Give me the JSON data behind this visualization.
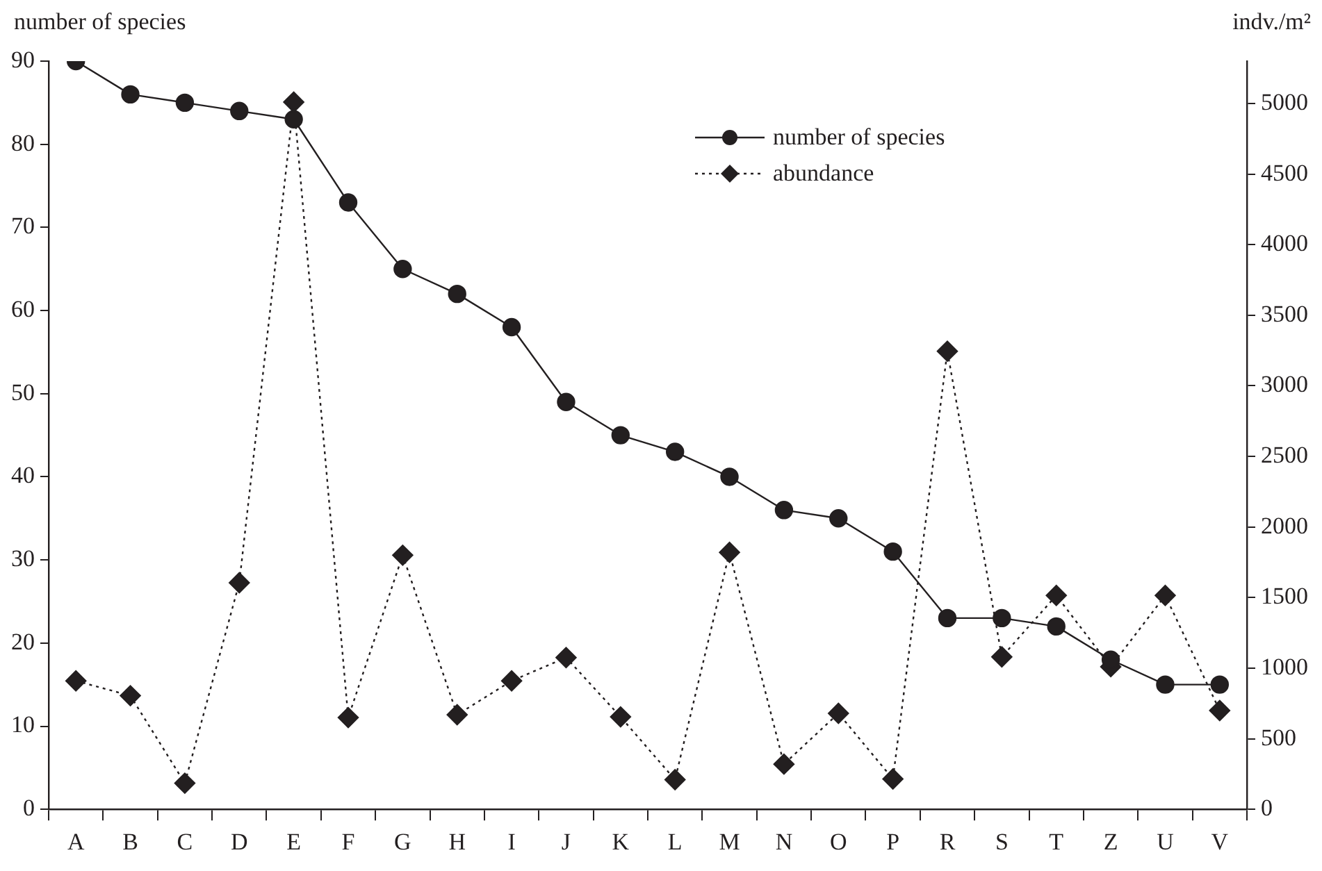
{
  "chart_data": {
    "type": "line",
    "ylabel": "number of species",
    "y2label": "indv./m²",
    "categories": [
      "A",
      "B",
      "C",
      "D",
      "E",
      "F",
      "G",
      "H",
      "I",
      "J",
      "K",
      "L",
      "M",
      "N",
      "O",
      "P",
      "R",
      "S",
      "T",
      "Z",
      "U",
      "V"
    ],
    "series": [
      {
        "name": "number of species",
        "color": "#231f20",
        "marker": "circle",
        "line_style": "solid",
        "values": [
          90,
          86,
          85,
          84,
          83,
          73,
          65,
          62,
          58,
          49,
          45,
          43,
          40,
          36,
          35,
          31,
          23,
          23,
          22,
          18,
          15,
          15
        ]
      },
      {
        "name": "abundance",
        "color": "#231f20",
        "marker": "diamond",
        "line_style": "dotted",
        "axis": "y2",
        "values": [
          910,
          805,
          185,
          1605,
          5010,
          650,
          1800,
          670,
          910,
          1075,
          655,
          210,
          1820,
          320,
          680,
          215,
          3245,
          1080,
          1515,
          1010,
          1515,
          700
        ]
      }
    ],
    "ylim": [
      0,
      90
    ],
    "yticks": [
      0,
      10,
      20,
      30,
      40,
      50,
      60,
      70,
      80,
      90
    ],
    "y2lim": [
      0,
      5300
    ],
    "y2ticks": [
      0,
      500,
      1000,
      1500,
      2000,
      2500,
      3000,
      3500,
      4000,
      4500,
      5000
    ],
    "grid": false,
    "legend": "top"
  }
}
